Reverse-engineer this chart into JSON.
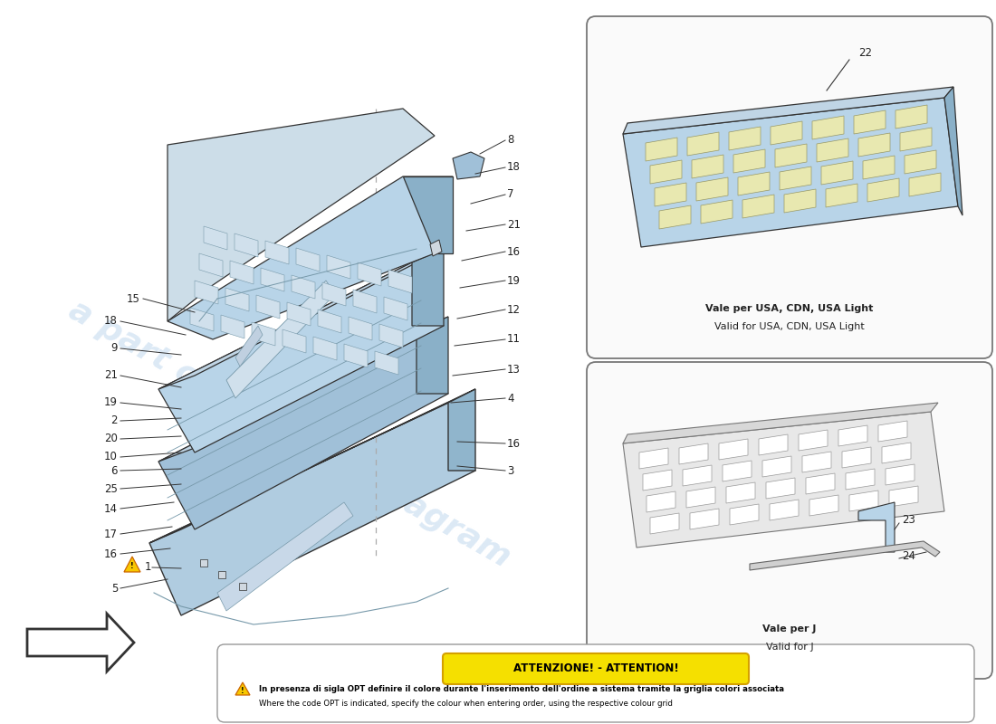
{
  "bg_color": "#ffffff",
  "blue_light": "#b8d4e8",
  "blue_mid": "#8ab0c8",
  "blue_dark": "#6090a8",
  "blue_panel": "#a0c0d8",
  "yellow_cell": "#e8e8b0",
  "gray_line": "#888888",
  "dark_line": "#333333",
  "label_color": "#222222",
  "attention_bg": "#f5e000",
  "attention_border": "#d4a000",
  "box_bg": "#fafafa",
  "box_border": "#777777",
  "watermark_color": "#c0d8ee",
  "attention_title": "ATTENZIONE! - ATTENTION!",
  "attention_line1": "In presenza di sigla OPT definire il colore durante l'inserimento dell'ordine a sistema tramite la griglia colori associata",
  "attention_line2": "Where the code OPT is indicated, specify the colour when entering order, using the respective colour grid",
  "box1_label1": "Vale per USA, CDN, USA Light",
  "box1_label2": "Valid for USA, CDN, USA Light",
  "box2_label1": "Vale per J",
  "box2_label2": "Valid for J"
}
